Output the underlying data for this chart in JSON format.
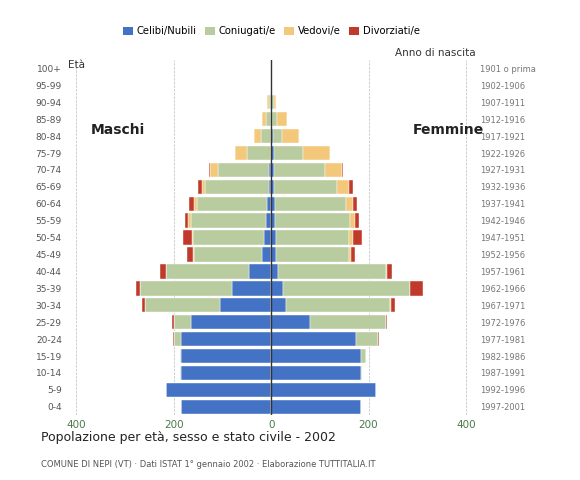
{
  "age_groups": [
    "0-4",
    "5-9",
    "10-14",
    "15-19",
    "20-24",
    "25-29",
    "30-34",
    "35-39",
    "40-44",
    "45-49",
    "50-54",
    "55-59",
    "60-64",
    "65-69",
    "70-74",
    "75-79",
    "80-84",
    "85-89",
    "90-94",
    "95-99",
    "100+"
  ],
  "birth_years": [
    "1997-2001",
    "1992-1996",
    "1987-1991",
    "1982-1986",
    "1977-1981",
    "1972-1976",
    "1967-1971",
    "1962-1966",
    "1957-1961",
    "1952-1956",
    "1947-1951",
    "1942-1946",
    "1937-1941",
    "1932-1936",
    "1927-1931",
    "1922-1926",
    "1917-1921",
    "1912-1916",
    "1907-1911",
    "1902-1906",
    "1901 o prima"
  ],
  "males_celibe": [
    185,
    215,
    185,
    185,
    185,
    165,
    105,
    80,
    45,
    18,
    15,
    10,
    8,
    5,
    5,
    0,
    0,
    0,
    0,
    0,
    0
  ],
  "males_coniugato": [
    0,
    1,
    2,
    3,
    15,
    35,
    155,
    190,
    170,
    140,
    145,
    155,
    145,
    130,
    105,
    50,
    20,
    10,
    5,
    0,
    0
  ],
  "males_vedovo": [
    0,
    0,
    0,
    0,
    0,
    0,
    0,
    0,
    1,
    2,
    3,
    5,
    5,
    8,
    15,
    25,
    15,
    8,
    3,
    0,
    0
  ],
  "males_divorziato": [
    0,
    0,
    0,
    0,
    1,
    3,
    5,
    8,
    12,
    12,
    18,
    8,
    10,
    8,
    2,
    0,
    0,
    0,
    0,
    0,
    0
  ],
  "females_nubile": [
    185,
    215,
    185,
    185,
    175,
    80,
    30,
    25,
    15,
    10,
    10,
    8,
    8,
    5,
    5,
    5,
    3,
    2,
    0,
    0,
    0
  ],
  "females_coniugata": [
    0,
    1,
    2,
    10,
    45,
    155,
    215,
    260,
    220,
    150,
    150,
    155,
    145,
    130,
    105,
    60,
    20,
    10,
    5,
    2,
    0
  ],
  "females_vedova": [
    0,
    0,
    0,
    0,
    0,
    0,
    1,
    1,
    2,
    5,
    8,
    10,
    15,
    25,
    35,
    55,
    35,
    20,
    5,
    0,
    0
  ],
  "females_divorziata": [
    0,
    0,
    0,
    0,
    1,
    3,
    8,
    25,
    12,
    8,
    18,
    8,
    8,
    8,
    2,
    0,
    0,
    0,
    0,
    0,
    0
  ],
  "color_celibe": "#4472c4",
  "color_coniugato": "#b8cca0",
  "color_vedovo": "#f4c87a",
  "color_divorziato": "#c0392b",
  "legend_labels": [
    "Celibi/Nubili",
    "Coniugati/e",
    "Vedovi/e",
    "Divorziati/e"
  ],
  "title": "Popolazione per età, sesso e stato civile - 2002",
  "subtitle": "COMUNE DI NEPI (VT) · Dati ISTAT 1° gennaio 2002 · Elaborazione TUTTITALIA.IT",
  "maschi_label": "Maschi",
  "femmine_label": "Femmine",
  "eta_label": "Età",
  "anno_label": "Anno di nascita",
  "xlim": 420,
  "bar_height": 0.85
}
